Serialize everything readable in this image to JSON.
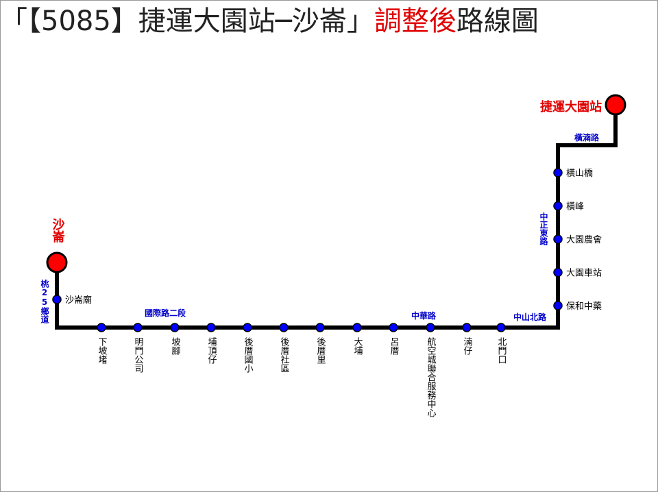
{
  "title": {
    "prefix": "「【5085】捷運大園站─沙崙」",
    "highlight": "調整後",
    "suffix": "路線圖"
  },
  "terminals": {
    "start": "捷運大園站",
    "end": "沙崙"
  },
  "roads": [
    "橫湳路",
    "中正東路",
    "中山北路",
    "中華路",
    "國際路二段",
    "桃25鄉道"
  ],
  "stops": [
    "橫山橋",
    "橫峰",
    "大園農會",
    "大園車站",
    "保和中藥",
    "北門口",
    "湳仔",
    "航空城聯合服務中心",
    "呂厝",
    "大埔",
    "後厝里",
    "後厝社區",
    "後厝國小",
    "埔頂仔",
    "坡腳",
    "明門公司",
    "下坡堵",
    "沙崙廟"
  ]
}
